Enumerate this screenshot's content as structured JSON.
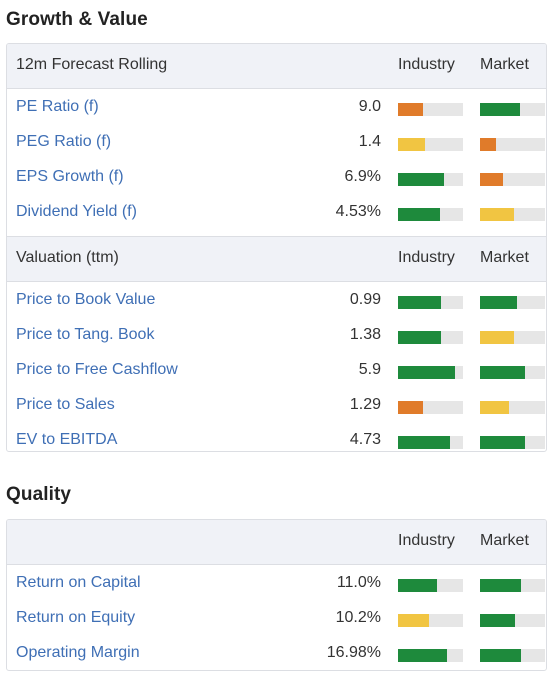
{
  "colors": {
    "green": "#1e8a3c",
    "orange": "#e07b2a",
    "yellow": "#f1c542",
    "empty": "#e6e6e6",
    "link": "#3f6fb5"
  },
  "growth_value": {
    "title": "Growth & Value",
    "forecast": {
      "label": "12m Forecast Rolling",
      "industry_header": "Industry",
      "market_header": "Market",
      "rows": [
        {
          "label": "PE Ratio (f)",
          "value": "9.0",
          "industry": {
            "level": 0.38,
            "color": "orange"
          },
          "market": {
            "level": 0.62,
            "color": "green"
          }
        },
        {
          "label": "PEG Ratio (f)",
          "value": "1.4",
          "industry": {
            "level": 0.42,
            "color": "yellow"
          },
          "market": {
            "level": 0.25,
            "color": "orange"
          }
        },
        {
          "label": "EPS Growth (f)",
          "value": "6.9%",
          "industry": {
            "level": 0.7,
            "color": "green"
          },
          "market": {
            "level": 0.35,
            "color": "orange"
          }
        },
        {
          "label": "Dividend Yield (f)",
          "value": "4.53%",
          "industry": {
            "level": 0.65,
            "color": "green"
          },
          "market": {
            "level": 0.52,
            "color": "yellow"
          }
        }
      ]
    },
    "valuation": {
      "label": "Valuation (ttm)",
      "industry_header": "Industry",
      "market_header": "Market",
      "rows": [
        {
          "label": "Price to Book Value",
          "value": "0.99",
          "industry": {
            "level": 0.66,
            "color": "green"
          },
          "market": {
            "level": 0.57,
            "color": "green"
          }
        },
        {
          "label": "Price to Tang. Book",
          "value": "1.38",
          "industry": {
            "level": 0.66,
            "color": "green"
          },
          "market": {
            "level": 0.52,
            "color": "yellow"
          }
        },
        {
          "label": "Price to Free Cashflow",
          "value": "5.9",
          "industry": {
            "level": 0.88,
            "color": "green"
          },
          "market": {
            "level": 0.69,
            "color": "green"
          }
        },
        {
          "label": "Price to Sales",
          "value": "1.29",
          "industry": {
            "level": 0.38,
            "color": "orange"
          },
          "market": {
            "level": 0.45,
            "color": "yellow"
          }
        },
        {
          "label": "EV to EBITDA",
          "value": "4.73",
          "industry": {
            "level": 0.8,
            "color": "green"
          },
          "market": {
            "level": 0.69,
            "color": "green"
          }
        }
      ]
    }
  },
  "quality": {
    "title": "Quality",
    "industry_header": "Industry",
    "market_header": "Market",
    "rows": [
      {
        "label": "Return on Capital",
        "value": "11.0%",
        "industry": {
          "level": 0.6,
          "color": "green"
        },
        "market": {
          "level": 0.63,
          "color": "green"
        }
      },
      {
        "label": "Return on Equity",
        "value": "10.2%",
        "industry": {
          "level": 0.48,
          "color": "yellow"
        },
        "market": {
          "level": 0.54,
          "color": "green"
        }
      },
      {
        "label": "Operating Margin",
        "value": "16.98%",
        "industry": {
          "level": 0.75,
          "color": "green"
        },
        "market": {
          "level": 0.63,
          "color": "green"
        }
      }
    ]
  }
}
